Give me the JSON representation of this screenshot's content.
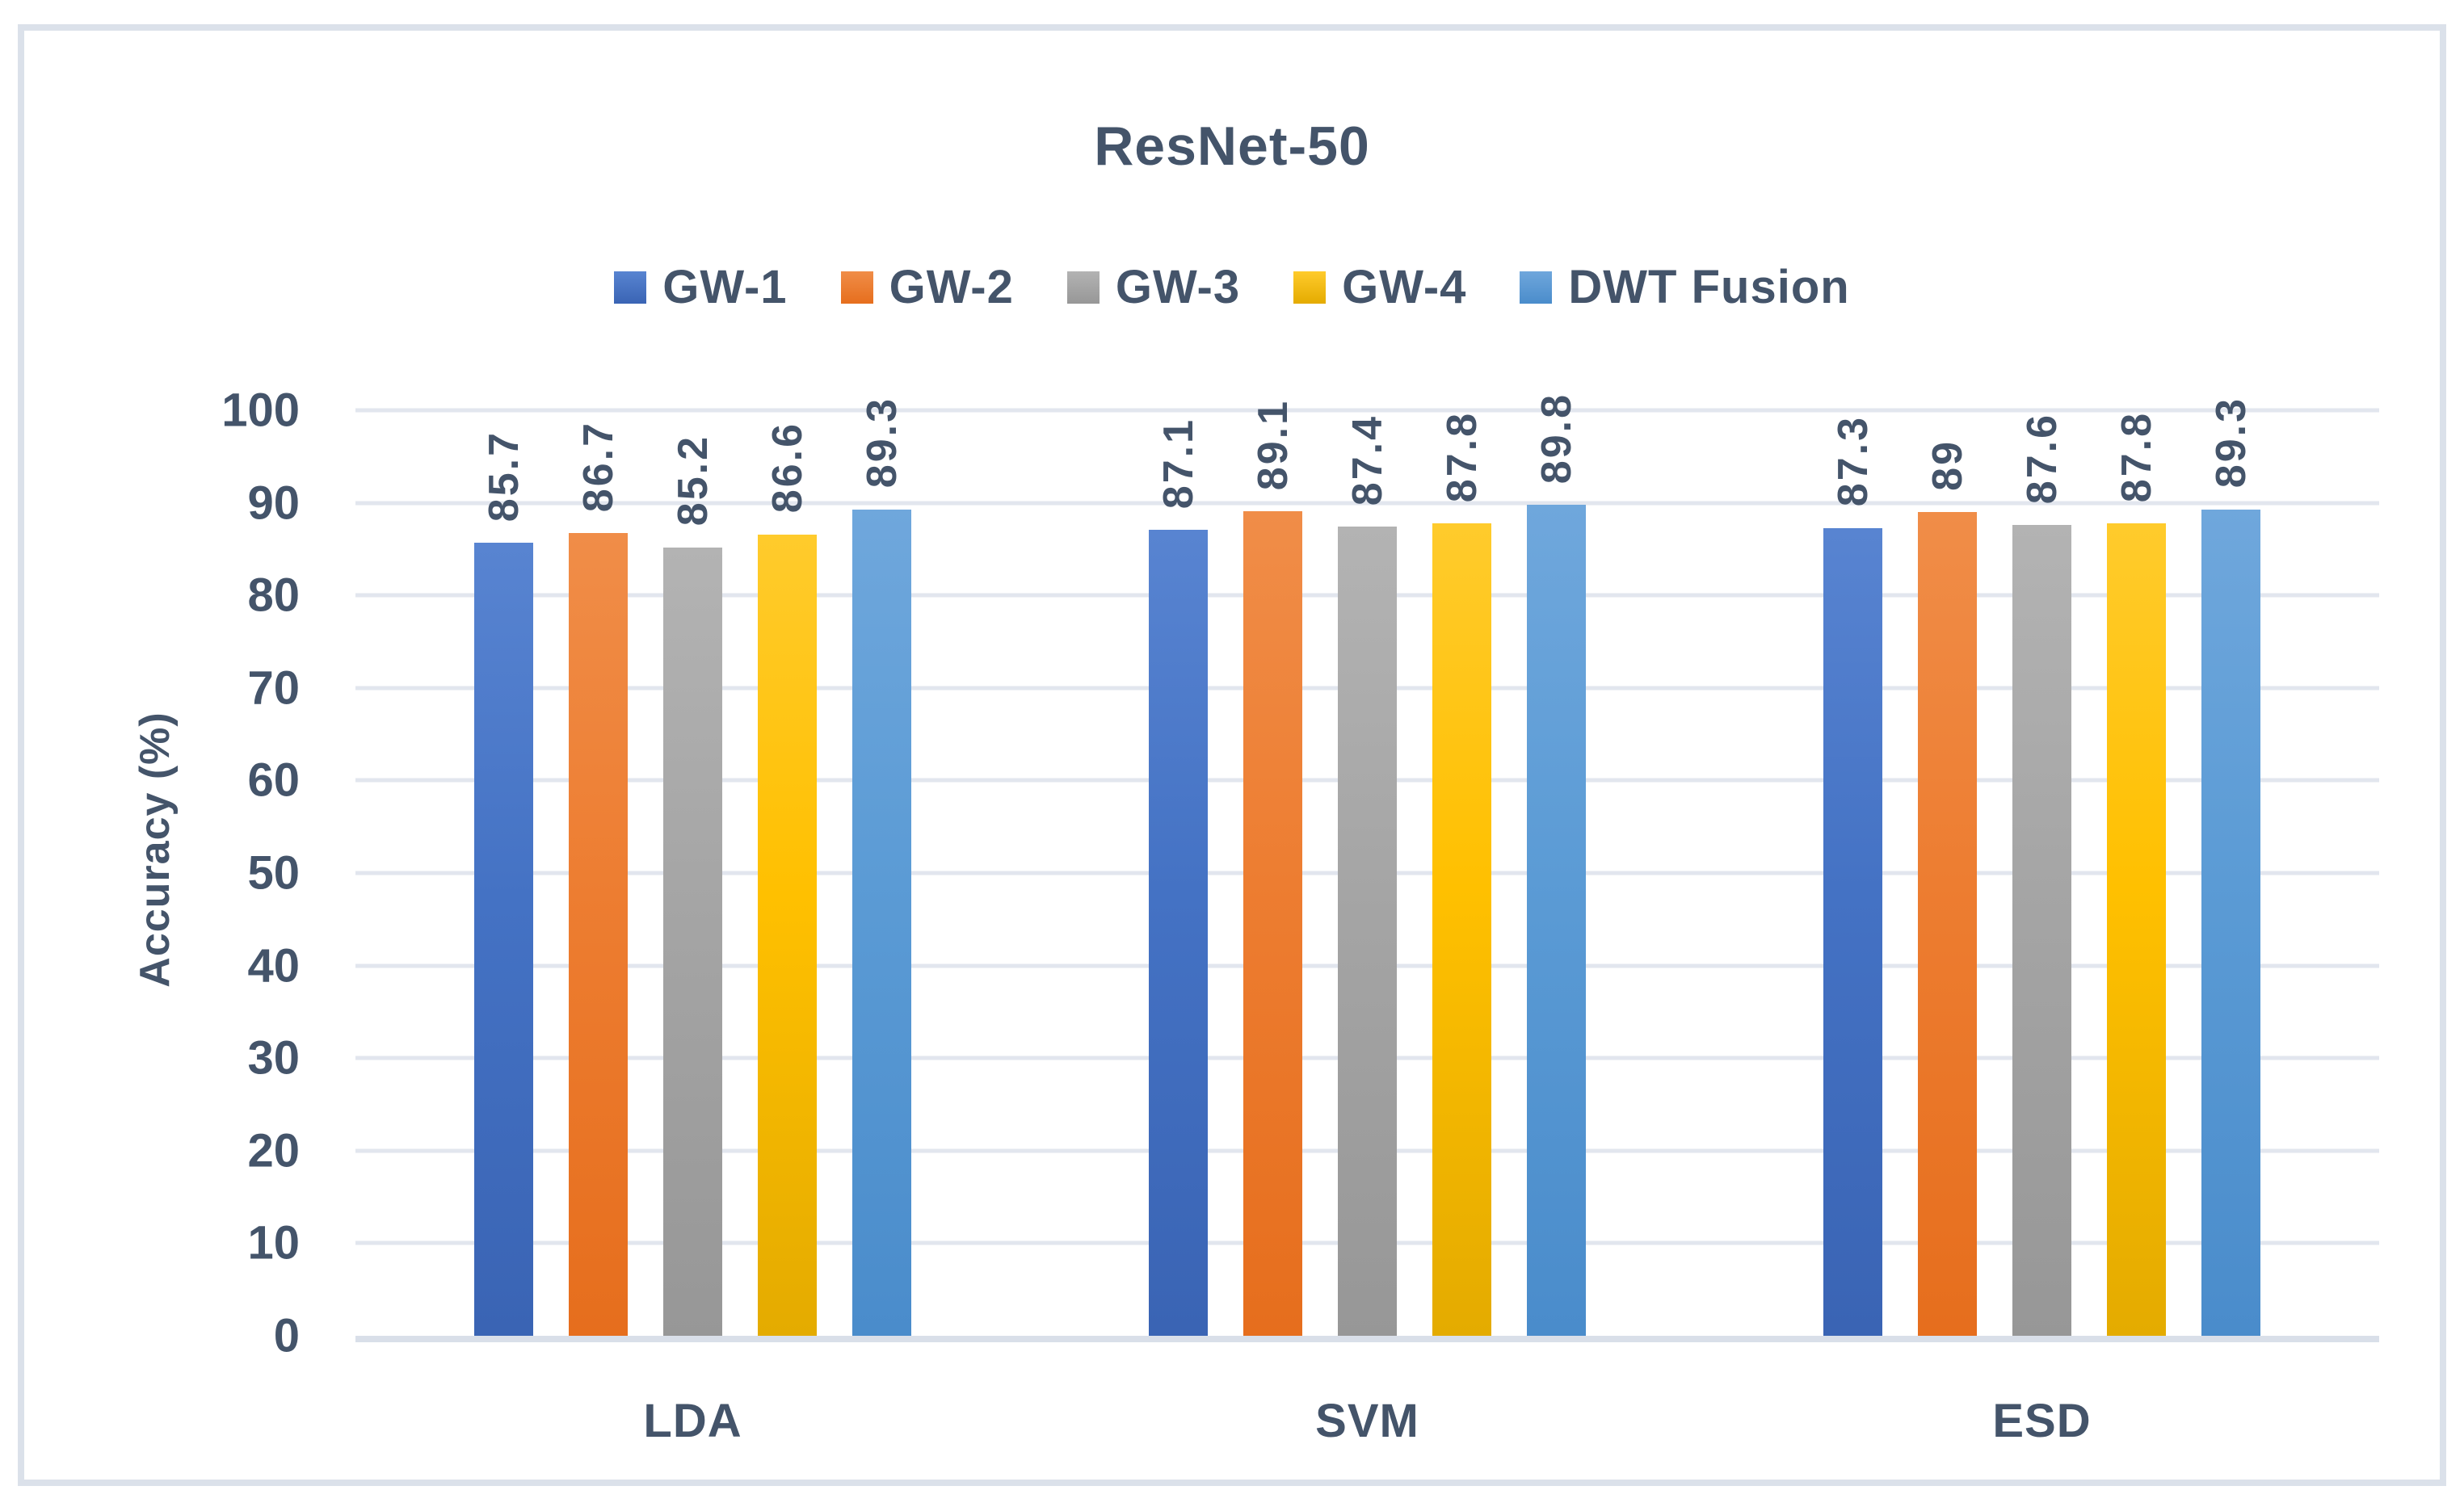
{
  "chart_data": {
    "type": "bar",
    "title": "ResNet-50",
    "xlabel": "",
    "ylabel": "Accuracy (%)",
    "ylim": [
      0,
      100
    ],
    "yticks": [
      0,
      10,
      20,
      30,
      40,
      50,
      60,
      70,
      80,
      90,
      100
    ],
    "grid": "horizontal",
    "legend_position": "top",
    "categories": [
      "LDA",
      "SVM",
      "ESD"
    ],
    "series": [
      {
        "name": "GW-1",
        "color": "#4472C4",
        "color_light": "#5884D1",
        "color_dark": "#3A64B4",
        "values": [
          85.7,
          87.1,
          87.3
        ],
        "labels": [
          "85.7",
          "87.1",
          "87.3"
        ]
      },
      {
        "name": "GW-2",
        "color": "#ED7D31",
        "color_light": "#F08D48",
        "color_dark": "#E66E1D",
        "values": [
          86.7,
          89.1,
          89.0
        ],
        "labels": [
          "86.7",
          "89.1",
          "89"
        ]
      },
      {
        "name": "GW-3",
        "color": "#A5A5A5",
        "color_light": "#B3B3B3",
        "color_dark": "#979797",
        "values": [
          85.2,
          87.4,
          87.6
        ],
        "labels": [
          "85.2",
          "87.4",
          "87.6"
        ]
      },
      {
        "name": "GW-4",
        "color": "#FFC000",
        "color_light": "#FFCB2C",
        "color_dark": "#E4AB00",
        "values": [
          86.6,
          87.8,
          87.8
        ],
        "labels": [
          "86.6",
          "87.8",
          "87.8"
        ]
      },
      {
        "name": "DWT Fusion",
        "color": "#5B9BD5",
        "color_light": "#6FA7DC",
        "color_dark": "#4A8CCB",
        "values": [
          89.3,
          89.8,
          89.3
        ],
        "labels": [
          "89.3",
          "89.8",
          "89.3"
        ]
      }
    ],
    "style": {
      "text_color": "#44546A",
      "gridline_color": "#E2E6EE",
      "axis_line_color": "#D9DFE9",
      "frame_border_color": "#DBE1EA",
      "background": "#FFFFFF"
    }
  }
}
